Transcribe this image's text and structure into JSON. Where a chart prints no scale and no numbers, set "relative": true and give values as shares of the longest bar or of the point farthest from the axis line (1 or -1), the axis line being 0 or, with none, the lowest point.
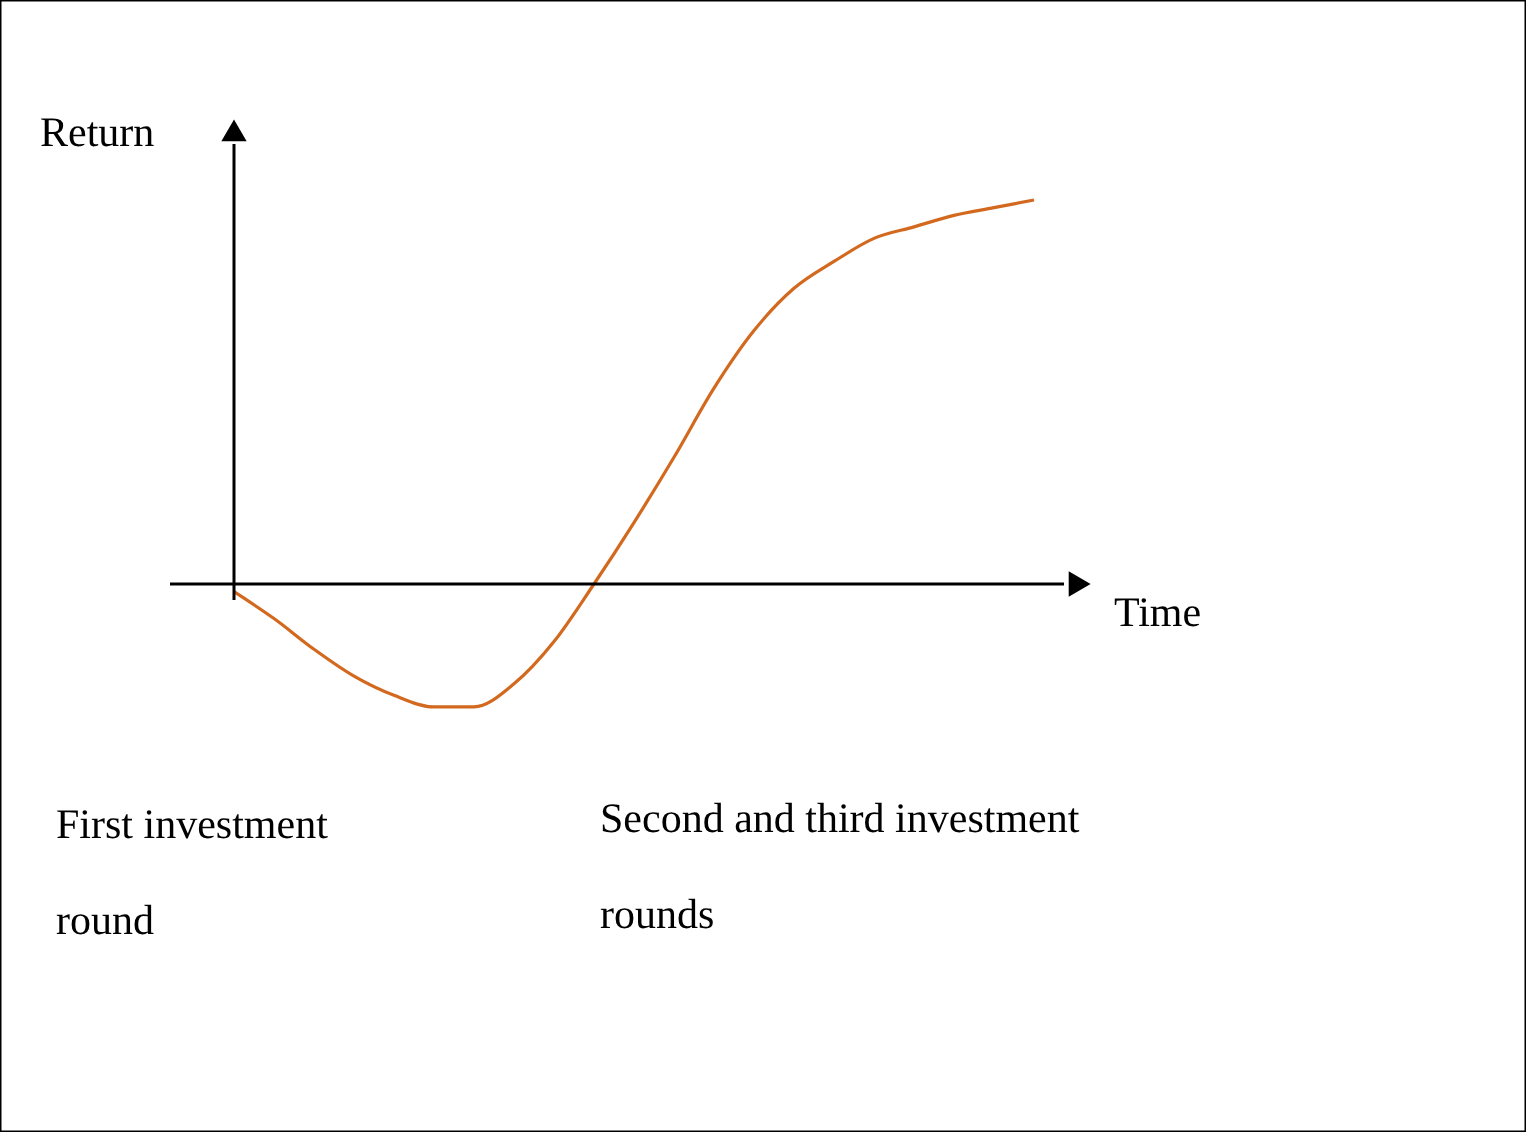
{
  "chart_data": {
    "type": "line",
    "relative": true,
    "ylabel": "Return",
    "xlabel": "Time",
    "categories": [
      null,
      null,
      null,
      null,
      null,
      null,
      null,
      null,
      null,
      null,
      null,
      null,
      null,
      null,
      null,
      null,
      null,
      null,
      null,
      null,
      null
    ],
    "series": [
      {
        "color": "#d2691e",
        "values": [
          -0.02,
          -0.09,
          -0.17,
          -0.24,
          -0.29,
          -0.32,
          -0.32,
          -0.26,
          -0.15,
          0.0,
          0.16,
          0.33,
          0.51,
          0.66,
          0.77,
          0.84,
          0.9,
          0.93,
          0.96,
          0.98,
          1.0
        ]
      }
    ],
    "annotations": [
      "First investment round",
      "Second and third investment rounds"
    ],
    "marker": "none",
    "line_style": "solid"
  }
}
